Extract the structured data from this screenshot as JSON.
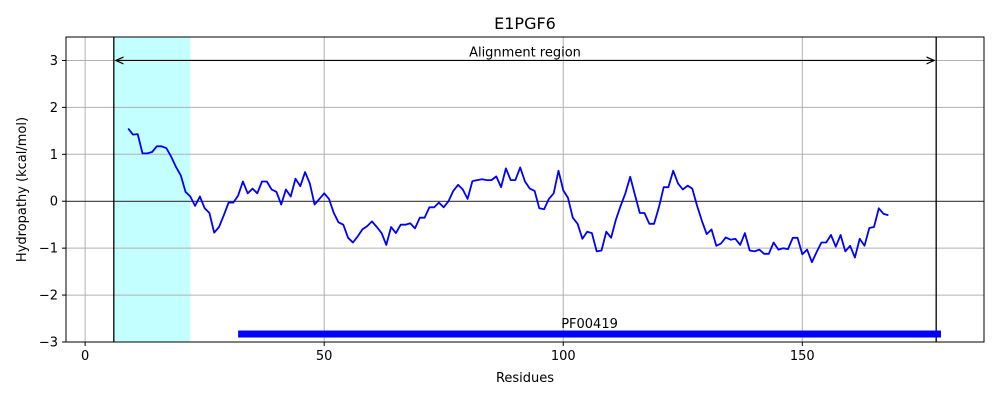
{
  "chart_data": {
    "type": "line",
    "title": "E1PGF6",
    "xlabel": "Residues",
    "ylabel": "Hydropathy (kcal/mol)",
    "xlim": [
      -4,
      188
    ],
    "ylim": [
      -3,
      3.5
    ],
    "xticks": [
      0,
      50,
      100,
      150
    ],
    "yticks": [
      -3,
      -2,
      -1,
      0,
      1,
      2,
      3
    ],
    "xtick_labels": [
      "0",
      "50",
      "100",
      "150"
    ],
    "ytick_labels": [
      "−3",
      "−2",
      "−1",
      "0",
      "1",
      "2",
      "3"
    ],
    "grid": true,
    "line_color": "#0000ff",
    "series": [
      {
        "x": [
          9,
          10,
          11,
          12,
          13,
          14,
          15,
          16,
          17,
          18,
          19,
          20,
          21,
          22,
          23,
          24,
          25,
          26,
          27,
          28,
          29,
          30,
          31,
          32,
          33,
          34,
          35,
          36,
          37,
          38,
          39,
          40,
          41,
          42,
          43,
          44,
          45,
          46,
          47,
          48,
          49,
          50,
          51,
          52,
          53,
          54,
          55,
          56,
          57,
          58,
          59,
          60,
          61,
          62,
          63,
          64,
          65,
          66,
          67,
          68,
          69,
          70,
          71,
          72,
          73,
          74,
          75,
          76,
          77,
          78,
          79,
          80,
          81,
          82,
          83,
          84,
          85,
          86,
          87,
          88,
          89,
          90,
          91,
          92,
          93,
          94,
          95,
          96,
          97,
          98,
          99,
          100,
          101,
          102,
          103,
          104,
          105,
          106,
          107,
          108,
          109,
          110,
          111,
          112,
          113,
          114,
          115,
          116,
          117,
          118,
          119,
          120,
          121,
          122,
          123,
          124,
          125,
          126,
          127,
          128,
          129,
          130,
          131,
          132,
          133,
          134,
          135,
          136,
          137,
          138,
          139,
          140,
          141,
          142,
          143,
          144,
          145,
          146,
          147,
          148,
          149,
          150,
          151,
          152,
          153,
          154,
          155,
          156,
          157,
          158,
          159,
          160,
          161,
          162,
          163,
          164,
          165,
          166,
          167,
          168
        ],
        "values": [
          1.55,
          1.42,
          1.43,
          1.02,
          1.02,
          1.05,
          1.17,
          1.17,
          1.13,
          0.95,
          0.73,
          0.55,
          0.2,
          0.1,
          -0.1,
          0.1,
          -0.15,
          -0.25,
          -0.67,
          -0.55,
          -0.3,
          -0.03,
          -0.03,
          0.12,
          0.42,
          0.17,
          0.27,
          0.17,
          0.42,
          0.42,
          0.25,
          0.2,
          -0.07,
          0.25,
          0.1,
          0.48,
          0.32,
          0.62,
          0.38,
          -0.07,
          0.05,
          0.17,
          0.05,
          -0.25,
          -0.45,
          -0.5,
          -0.78,
          -0.88,
          -0.75,
          -0.6,
          -0.53,
          -0.43,
          -0.55,
          -0.68,
          -0.93,
          -0.55,
          -0.68,
          -0.5,
          -0.5,
          -0.47,
          -0.58,
          -0.35,
          -0.35,
          -0.13,
          -0.13,
          -0.03,
          -0.13,
          0.0,
          0.22,
          0.35,
          0.25,
          0.05,
          0.43,
          0.45,
          0.47,
          0.45,
          0.45,
          0.53,
          0.3,
          0.7,
          0.45,
          0.45,
          0.72,
          0.42,
          0.27,
          0.22,
          -0.15,
          -0.17,
          0.05,
          0.17,
          0.65,
          0.23,
          0.07,
          -0.35,
          -0.48,
          -0.8,
          -0.65,
          -0.68,
          -1.07,
          -1.05,
          -0.65,
          -0.78,
          -0.4,
          -0.1,
          0.17,
          0.52,
          0.13,
          -0.25,
          -0.25,
          -0.48,
          -0.48,
          -0.13,
          0.3,
          0.3,
          0.65,
          0.38,
          0.25,
          0.33,
          0.27,
          -0.1,
          -0.42,
          -0.7,
          -0.6,
          -0.95,
          -0.9,
          -0.77,
          -0.82,
          -0.8,
          -0.93,
          -0.68,
          -1.05,
          -1.07,
          -1.03,
          -1.12,
          -1.12,
          -0.88,
          -1.03,
          -1.0,
          -1.02,
          -0.78,
          -0.78,
          -1.13,
          -1.03,
          -1.3,
          -1.08,
          -0.88,
          -0.88,
          -0.72,
          -0.97,
          -0.72,
          -1.07,
          -0.95,
          -1.2,
          -0.8,
          -0.95,
          -0.57,
          -0.55,
          -0.15,
          -0.27,
          -0.3
        ]
      }
    ],
    "shaded_region": {
      "x_start": 6,
      "x_end": 22,
      "color": "#c4ffff"
    },
    "vertical_lines": [
      6,
      178
    ],
    "horizontal_reference": 0,
    "alignment_arrow": {
      "x_start": 6,
      "x_end": 178,
      "y": 3.0,
      "label": "Alignment region"
    },
    "domain_bar": {
      "x_start": 32,
      "x_end": 179,
      "y": -2.83,
      "label": "PF00419",
      "color": "#0000ff"
    }
  }
}
